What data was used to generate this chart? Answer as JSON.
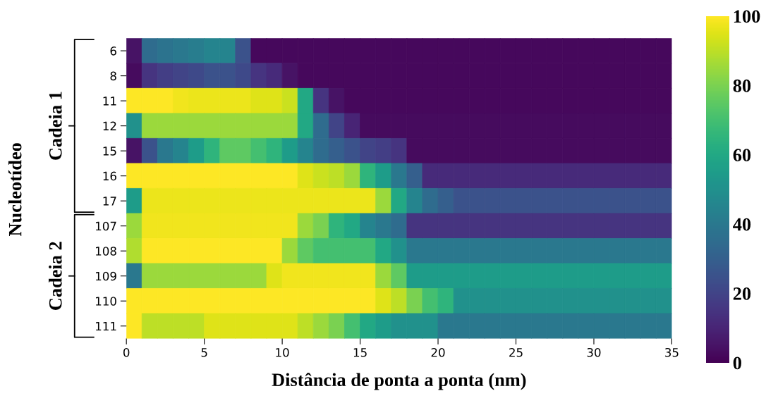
{
  "chart_data": {
    "type": "heatmap",
    "xlabel": "Distância de ponta a ponta (nm)",
    "ylabel": "Nucleotídeo",
    "x": [
      0.5,
      1.5,
      2.5,
      3.5,
      4.5,
      5.5,
      6.5,
      7.5,
      8.5,
      9.5,
      10.5,
      11.5,
      12.5,
      13.5,
      14.5,
      15.5,
      16.5,
      17.5,
      18.5,
      19.5,
      20.5,
      21.5,
      22.5,
      23.5,
      24.5,
      25.5,
      26.5,
      27.5,
      28.5,
      29.5,
      30.5,
      31.5,
      32.5,
      33.5,
      34.5
    ],
    "xlim": [
      0,
      35
    ],
    "xticks": [
      0,
      5,
      10,
      15,
      20,
      25,
      30,
      35
    ],
    "y_categories": [
      "6",
      "8",
      "11",
      "12",
      "15",
      "16",
      "17",
      "107",
      "108",
      "109",
      "110",
      "111"
    ],
    "cells": [
      [
        5,
        35,
        38,
        40,
        42,
        45,
        45,
        25,
        2,
        2,
        2,
        2,
        2,
        2,
        2,
        2,
        2,
        2,
        2,
        2,
        2,
        2,
        2,
        2,
        2,
        2,
        2,
        2,
        2,
        2,
        2,
        2,
        2,
        2,
        2
      ],
      [
        3,
        15,
        18,
        20,
        22,
        25,
        25,
        22,
        15,
        12,
        5,
        2,
        2,
        2,
        2,
        2,
        2,
        2,
        2,
        2,
        2,
        2,
        2,
        2,
        2,
        2,
        2,
        2,
        2,
        2,
        2,
        2,
        2,
        2,
        2
      ],
      [
        100,
        100,
        100,
        98,
        97,
        97,
        97,
        97,
        95,
        95,
        92,
        60,
        15,
        5,
        2,
        2,
        2,
        2,
        2,
        2,
        2,
        2,
        2,
        2,
        2,
        2,
        2,
        2,
        2,
        2,
        2,
        2,
        2,
        2,
        2
      ],
      [
        50,
        85,
        85,
        85,
        85,
        85,
        85,
        85,
        85,
        85,
        85,
        60,
        35,
        20,
        10,
        3,
        3,
        3,
        3,
        3,
        3,
        3,
        3,
        3,
        3,
        3,
        3,
        3,
        3,
        3,
        3,
        3,
        3,
        3,
        3
      ],
      [
        5,
        25,
        40,
        45,
        55,
        65,
        75,
        75,
        70,
        65,
        55,
        45,
        35,
        30,
        25,
        20,
        18,
        15,
        3,
        3,
        3,
        3,
        3,
        3,
        3,
        3,
        3,
        3,
        3,
        3,
        3,
        3,
        3,
        3,
        3
      ],
      [
        100,
        100,
        100,
        100,
        100,
        100,
        100,
        100,
        100,
        100,
        100,
        95,
        92,
        90,
        85,
        65,
        55,
        40,
        30,
        12,
        12,
        12,
        12,
        12,
        12,
        12,
        12,
        12,
        12,
        12,
        12,
        12,
        12,
        12,
        12
      ],
      [
        55,
        97,
        97,
        97,
        97,
        97,
        97,
        97,
        97,
        97,
        97,
        97,
        97,
        97,
        97,
        97,
        85,
        60,
        45,
        35,
        30,
        25,
        25,
        25,
        25,
        25,
        25,
        25,
        25,
        25,
        25,
        25,
        25,
        25,
        25
      ],
      [
        85,
        98,
        98,
        98,
        98,
        98,
        98,
        98,
        98,
        98,
        98,
        85,
        80,
        65,
        60,
        45,
        40,
        35,
        15,
        15,
        15,
        15,
        15,
        15,
        15,
        15,
        15,
        15,
        15,
        15,
        15,
        15,
        15,
        15,
        15
      ],
      [
        88,
        100,
        100,
        100,
        100,
        100,
        100,
        100,
        100,
        100,
        85,
        75,
        70,
        70,
        70,
        70,
        60,
        50,
        40,
        40,
        40,
        40,
        40,
        40,
        40,
        40,
        40,
        40,
        40,
        40,
        40,
        40,
        40,
        40,
        40
      ],
      [
        40,
        85,
        85,
        85,
        85,
        85,
        85,
        85,
        85,
        95,
        98,
        98,
        98,
        98,
        98,
        98,
        85,
        75,
        55,
        55,
        55,
        55,
        55,
        55,
        55,
        55,
        55,
        55,
        55,
        55,
        55,
        55,
        55,
        55,
        55
      ],
      [
        100,
        100,
        100,
        100,
        100,
        100,
        100,
        100,
        100,
        100,
        100,
        100,
        100,
        100,
        100,
        100,
        95,
        90,
        80,
        70,
        65,
        50,
        50,
        50,
        50,
        50,
        50,
        50,
        50,
        50,
        50,
        50,
        50,
        50,
        50
      ],
      [
        100,
        90,
        90,
        90,
        90,
        95,
        95,
        95,
        95,
        95,
        95,
        90,
        85,
        80,
        70,
        60,
        55,
        50,
        50,
        50,
        40,
        40,
        40,
        40,
        40,
        40,
        40,
        40,
        40,
        40,
        40,
        40,
        40,
        40,
        40
      ]
    ],
    "clim": [
      0,
      100
    ],
    "cticks": [
      0,
      20,
      40,
      60,
      80,
      100
    ],
    "annotations": [
      "Cadeia 1",
      "Cadeia 2"
    ]
  }
}
